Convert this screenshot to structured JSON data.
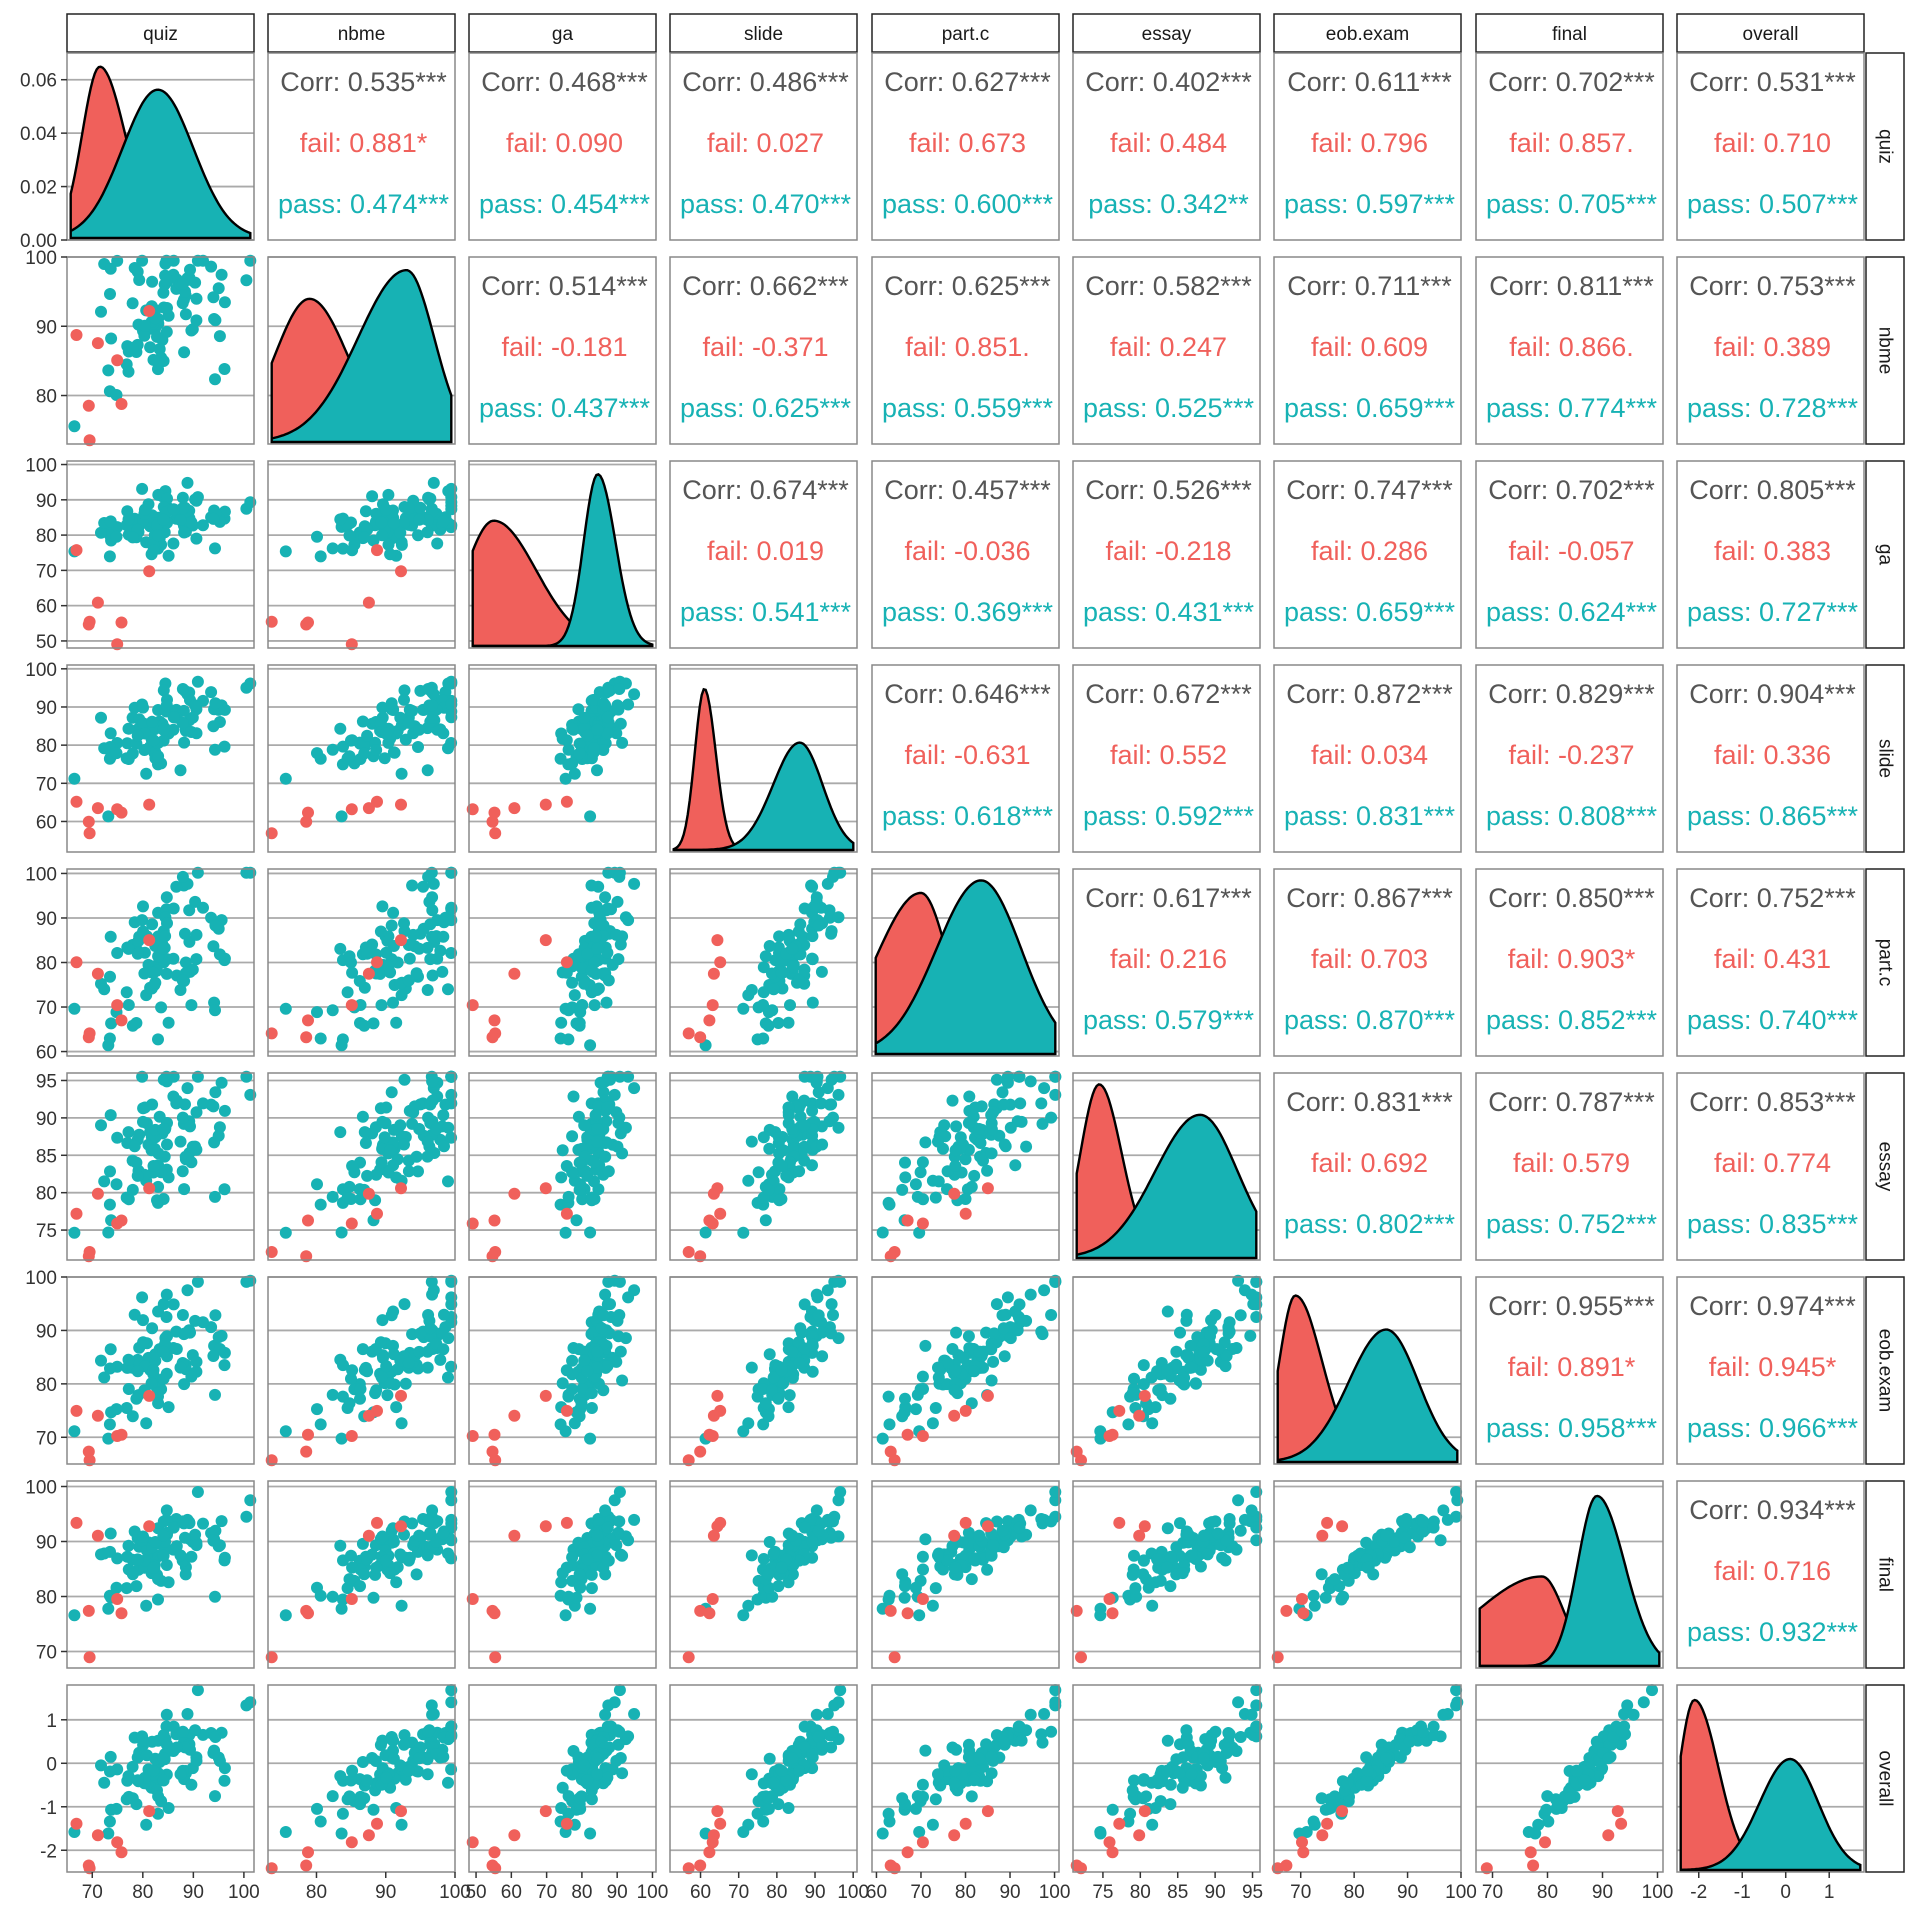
{
  "chart_data": {
    "type": "scatter-matrix",
    "groups": [
      {
        "name": "fail",
        "color": "#F0605B"
      },
      {
        "name": "pass",
        "color": "#17B2B4"
      }
    ],
    "variables": [
      "quiz",
      "nbme",
      "ga",
      "slide",
      "part.c",
      "essay",
      "eob.exam",
      "final",
      "overall"
    ],
    "axes": [
      {
        "name": "quiz",
        "range": [
          65,
          102
        ],
        "ticks": [
          70,
          80,
          90,
          100
        ]
      },
      {
        "name": "nbme",
        "range": [
          73,
          100
        ],
        "ticks": [
          80,
          90,
          100
        ]
      },
      {
        "name": "ga",
        "range": [
          48,
          101
        ],
        "ticks": [
          50,
          60,
          70,
          80,
          90,
          100
        ]
      },
      {
        "name": "slide",
        "range": [
          52,
          101
        ],
        "ticks": [
          60,
          70,
          80,
          90,
          100
        ]
      },
      {
        "name": "part.c",
        "range": [
          59,
          101
        ],
        "ticks": [
          60,
          70,
          80,
          90,
          100
        ]
      },
      {
        "name": "essay",
        "range": [
          71,
          96
        ],
        "ticks": [
          75,
          80,
          85,
          90,
          95
        ]
      },
      {
        "name": "eob.exam",
        "range": [
          65,
          100
        ],
        "ticks": [
          70,
          80,
          90,
          100
        ]
      },
      {
        "name": "final",
        "range": [
          67,
          101
        ],
        "ticks": [
          70,
          80,
          90,
          100
        ]
      },
      {
        "name": "overall",
        "range": [
          -2.5,
          1.8
        ],
        "ticks": [
          -2,
          -1,
          0,
          1
        ]
      }
    ],
    "density_axis": {
      "variable": "quiz",
      "range": [
        0,
        0.07
      ],
      "ticks": [
        "0.00",
        "0.02",
        "0.04",
        "0.06"
      ]
    },
    "correlations": [
      {
        "row": "quiz",
        "col": "nbme",
        "corr": "Corr: 0.535***",
        "fail": "fail: 0.881*",
        "pass": "pass: 0.474***"
      },
      {
        "row": "quiz",
        "col": "ga",
        "corr": "Corr: 0.468***",
        "fail": "fail: 0.090",
        "pass": "pass: 0.454***"
      },
      {
        "row": "quiz",
        "col": "slide",
        "corr": "Corr: 0.486***",
        "fail": "fail: 0.027",
        "pass": "pass: 0.470***"
      },
      {
        "row": "quiz",
        "col": "part.c",
        "corr": "Corr: 0.627***",
        "fail": "fail: 0.673",
        "pass": "pass: 0.600***"
      },
      {
        "row": "quiz",
        "col": "essay",
        "corr": "Corr: 0.402***",
        "fail": "fail: 0.484",
        "pass": "pass: 0.342**"
      },
      {
        "row": "quiz",
        "col": "eob.exam",
        "corr": "Corr: 0.611***",
        "fail": "fail: 0.796",
        "pass": "pass: 0.597***"
      },
      {
        "row": "quiz",
        "col": "final",
        "corr": "Corr: 0.702***",
        "fail": "fail: 0.857.",
        "pass": "pass: 0.705***"
      },
      {
        "row": "quiz",
        "col": "overall",
        "corr": "Corr: 0.531***",
        "fail": "fail: 0.710",
        "pass": "pass: 0.507***"
      },
      {
        "row": "nbme",
        "col": "ga",
        "corr": "Corr: 0.514***",
        "fail": "fail: -0.181",
        "pass": "pass: 0.437***"
      },
      {
        "row": "nbme",
        "col": "slide",
        "corr": "Corr: 0.662***",
        "fail": "fail: -0.371",
        "pass": "pass: 0.625***"
      },
      {
        "row": "nbme",
        "col": "part.c",
        "corr": "Corr: 0.625***",
        "fail": "fail: 0.851.",
        "pass": "pass: 0.559***"
      },
      {
        "row": "nbme",
        "col": "essay",
        "corr": "Corr: 0.582***",
        "fail": "fail: 0.247",
        "pass": "pass: 0.525***"
      },
      {
        "row": "nbme",
        "col": "eob.exam",
        "corr": "Corr: 0.711***",
        "fail": "fail: 0.609",
        "pass": "pass: 0.659***"
      },
      {
        "row": "nbme",
        "col": "final",
        "corr": "Corr: 0.811***",
        "fail": "fail: 0.866.",
        "pass": "pass: 0.774***"
      },
      {
        "row": "nbme",
        "col": "overall",
        "corr": "Corr: 0.753***",
        "fail": "fail: 0.389",
        "pass": "pass: 0.728***"
      },
      {
        "row": "ga",
        "col": "slide",
        "corr": "Corr: 0.674***",
        "fail": "fail: 0.019",
        "pass": "pass: 0.541***"
      },
      {
        "row": "ga",
        "col": "part.c",
        "corr": "Corr: 0.457***",
        "fail": "fail: -0.036",
        "pass": "pass: 0.369***"
      },
      {
        "row": "ga",
        "col": "essay",
        "corr": "Corr: 0.526***",
        "fail": "fail: -0.218",
        "pass": "pass: 0.431***"
      },
      {
        "row": "ga",
        "col": "eob.exam",
        "corr": "Corr: 0.747***",
        "fail": "fail: 0.286",
        "pass": "pass: 0.659***"
      },
      {
        "row": "ga",
        "col": "final",
        "corr": "Corr: 0.702***",
        "fail": "fail: -0.057",
        "pass": "pass: 0.624***"
      },
      {
        "row": "ga",
        "col": "overall",
        "corr": "Corr: 0.805***",
        "fail": "fail: 0.383",
        "pass": "pass: 0.727***"
      },
      {
        "row": "slide",
        "col": "part.c",
        "corr": "Corr: 0.646***",
        "fail": "fail: -0.631",
        "pass": "pass: 0.618***"
      },
      {
        "row": "slide",
        "col": "essay",
        "corr": "Corr: 0.672***",
        "fail": "fail: 0.552",
        "pass": "pass: 0.592***"
      },
      {
        "row": "slide",
        "col": "eob.exam",
        "corr": "Corr: 0.872***",
        "fail": "fail: 0.034",
        "pass": "pass: 0.831***"
      },
      {
        "row": "slide",
        "col": "final",
        "corr": "Corr: 0.829***",
        "fail": "fail: -0.237",
        "pass": "pass: 0.808***"
      },
      {
        "row": "slide",
        "col": "overall",
        "corr": "Corr: 0.904***",
        "fail": "fail: 0.336",
        "pass": "pass: 0.865***"
      },
      {
        "row": "part.c",
        "col": "essay",
        "corr": "Corr: 0.617***",
        "fail": "fail: 0.216",
        "pass": "pass: 0.579***"
      },
      {
        "row": "part.c",
        "col": "eob.exam",
        "corr": "Corr: 0.867***",
        "fail": "fail: 0.703",
        "pass": "pass: 0.870***"
      },
      {
        "row": "part.c",
        "col": "final",
        "corr": "Corr: 0.850***",
        "fail": "fail: 0.903*",
        "pass": "pass: 0.852***"
      },
      {
        "row": "part.c",
        "col": "overall",
        "corr": "Corr: 0.752***",
        "fail": "fail: 0.431",
        "pass": "pass: 0.740***"
      },
      {
        "row": "essay",
        "col": "eob.exam",
        "corr": "Corr: 0.831***",
        "fail": "fail: 0.692",
        "pass": "pass: 0.802***"
      },
      {
        "row": "essay",
        "col": "final",
        "corr": "Corr: 0.787***",
        "fail": "fail: 0.579",
        "pass": "pass: 0.752***"
      },
      {
        "row": "essay",
        "col": "overall",
        "corr": "Corr: 0.853***",
        "fail": "fail: 0.774",
        "pass": "pass: 0.835***"
      },
      {
        "row": "eob.exam",
        "col": "final",
        "corr": "Corr: 0.955***",
        "fail": "fail: 0.891*",
        "pass": "pass: 0.958***"
      },
      {
        "row": "eob.exam",
        "col": "overall",
        "corr": "Corr: 0.974***",
        "fail": "fail: 0.945*",
        "pass": "pass: 0.966***"
      },
      {
        "row": "final",
        "col": "overall",
        "corr": "Corr: 0.934***",
        "fail": "fail: 0.716",
        "pass": "pass: 0.932***"
      }
    ],
    "densities": [
      {
        "variable": "quiz",
        "fail": {
          "peak": 71.5,
          "low_sd": 3.5,
          "high_sd": 5,
          "height": 0.067
        },
        "pass": {
          "peak": 83,
          "low_sd": 7,
          "high_sd": 7,
          "height": 0.058
        }
      },
      {
        "variable": "nbme",
        "fail": {
          "peak": 79,
          "low_sd": 5,
          "high_sd": 5.5,
          "height": 0.8
        },
        "pass": {
          "peak": 93,
          "low_sd": 7,
          "high_sd": 4,
          "height": 0.96
        }
      },
      {
        "variable": "ga",
        "fail": {
          "peak": 55,
          "low_sd": 8,
          "high_sd": 12,
          "height": 0.7
        },
        "pass": {
          "peak": 84.5,
          "low_sd": 4,
          "high_sd": 5,
          "height": 0.96
        }
      },
      {
        "variable": "slide",
        "fail": {
          "peak": 61,
          "low_sd": 2.5,
          "high_sd": 3,
          "height": 0.9
        },
        "pass": {
          "peak": 86,
          "low_sd": 7,
          "high_sd": 6,
          "height": 0.6
        }
      },
      {
        "variable": "part.c",
        "fail": {
          "peak": 70,
          "low_sd": 10,
          "high_sd": 6,
          "height": 0.9
        },
        "pass": {
          "peak": 83.5,
          "low_sd": 10,
          "high_sd": 9,
          "height": 0.97
        }
      },
      {
        "variable": "essay",
        "fail": {
          "peak": 74.5,
          "low_sd": 2.5,
          "high_sd": 3,
          "height": 0.97
        },
        "pass": {
          "peak": 88,
          "low_sd": 6,
          "high_sd": 5,
          "height": 0.8
        }
      },
      {
        "variable": "eob.exam",
        "fail": {
          "peak": 69,
          "low_sd": 3,
          "high_sd": 5,
          "height": 0.93
        },
        "pass": {
          "peak": 86,
          "low_sd": 7,
          "high_sd": 6,
          "height": 0.74
        }
      },
      {
        "variable": "final",
        "fail": {
          "peak": 79,
          "low_sd": 12,
          "high_sd": 4,
          "height": 0.5
        },
        "pass": {
          "peak": 89,
          "low_sd": 3.5,
          "high_sd": 5,
          "height": 0.95
        }
      },
      {
        "variable": "overall",
        "fail": {
          "peak": -2.1,
          "low_sd": 0.35,
          "high_sd": 0.55,
          "height": 0.95
        },
        "pass": {
          "peak": 0.1,
          "low_sd": 0.7,
          "high_sd": 0.65,
          "height": 0.62
        }
      }
    ]
  }
}
